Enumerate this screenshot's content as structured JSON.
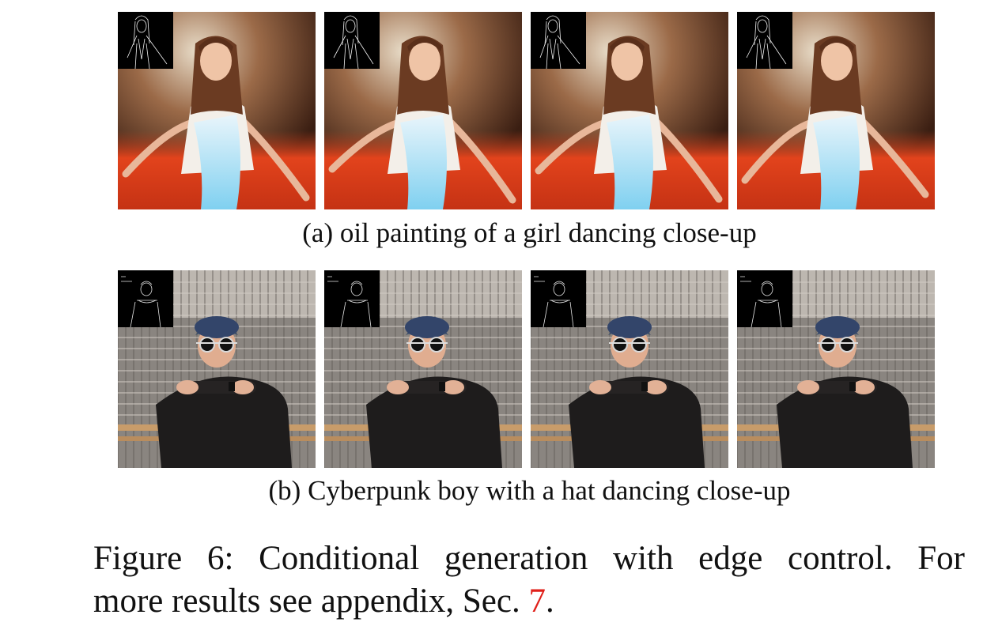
{
  "figure": {
    "subfigures": [
      {
        "label": "(a)",
        "caption": "oil painting of a girl dancing close-up"
      },
      {
        "label": "(b)",
        "caption": "Cyberpunk boy with a hat dancing close-up"
      }
    ],
    "caption": {
      "label": "Figure 6:",
      "line1_rest": "Conditional generation with edge control.  For",
      "line2": "more results see appendix, Sec.",
      "ref": "7",
      "tail": "."
    }
  },
  "colors": {
    "ref_link": "#e0201a",
    "oil_bg_top": "#e8dcc8",
    "oil_bg_dark": "#3a1e12",
    "oil_floor": "#e2431c",
    "oil_cloth": "#7fd0f0",
    "cyber_bg": "#8a8580",
    "cyber_jacket": "#1e1c1c"
  }
}
